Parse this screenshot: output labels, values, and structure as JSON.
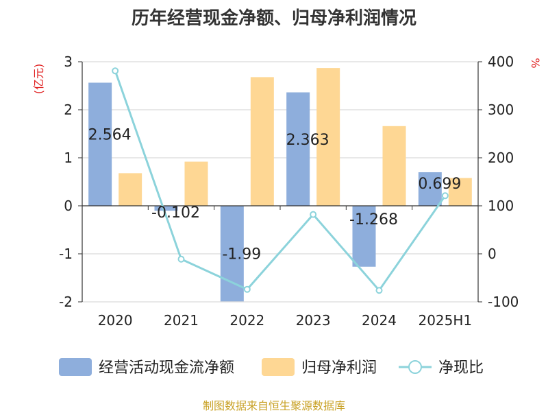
{
  "title": "历年经营现金净额、归母净利润情况",
  "source": "制图数据来自恒生聚源数据库",
  "colors": {
    "bar1": "#8eaedc",
    "bar2": "#fed794",
    "line": "#8cd3db",
    "axis": "#333333",
    "grid": "#d0d0d0",
    "unit": "#e02020",
    "text": "#222222"
  },
  "chart_data": {
    "type": "bar",
    "categories": [
      "2020",
      "2021",
      "2022",
      "2023",
      "2024",
      "2025H1"
    ],
    "ylabel_left": "(亿元)",
    "ylabel_right": "%",
    "ylim_left": [
      -2,
      3
    ],
    "ylim_right": [
      -100,
      400
    ],
    "yticks_left": [
      "3",
      "2",
      "1",
      "0",
      "-1",
      "-2"
    ],
    "yticks_right": [
      "400",
      "300",
      "200",
      "100",
      "0",
      "-100"
    ],
    "series": [
      {
        "name": "经营活动现金流净额",
        "type": "bar",
        "axis": "left",
        "values": [
          2.564,
          -0.102,
          -1.99,
          2.363,
          -1.268,
          0.699
        ],
        "labels": [
          "2.564",
          "-0.102",
          "-1.99",
          "2.363",
          "-1.268",
          "0.699"
        ]
      },
      {
        "name": "归母净利润",
        "type": "bar",
        "axis": "left",
        "values": [
          0.68,
          0.92,
          2.68,
          2.87,
          1.66,
          0.58
        ]
      },
      {
        "name": "净现比",
        "type": "line",
        "axis": "right",
        "values": [
          381,
          -11,
          -74,
          82,
          -76,
          121
        ]
      }
    ],
    "legend": "bottom",
    "grid": true
  }
}
